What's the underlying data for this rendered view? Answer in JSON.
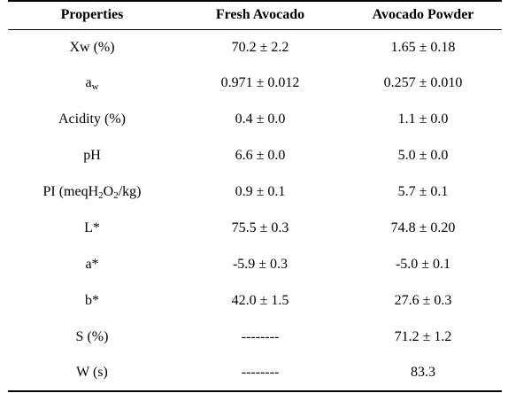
{
  "table": {
    "headers": [
      "Properties",
      "Fresh Avocado",
      "Avocado Powder"
    ],
    "rows": [
      {
        "property": "Xw (%)",
        "fresh": "70.2 ± 2.2",
        "powder": "1.65 ± 0.18"
      },
      {
        "property_base": "a",
        "property_sub": "w",
        "fresh": "0.971 ± 0.012",
        "powder": "0.257 ± 0.010"
      },
      {
        "property": "Acidity (%)",
        "fresh": "0.4 ± 0.0",
        "powder": "1.1 ± 0.0"
      },
      {
        "property": "pH",
        "fresh": "6.6 ± 0.0",
        "powder": "5.0 ± 0.0"
      },
      {
        "property_pre": "PI (meqH",
        "property_sub1": "2",
        "property_mid": "O",
        "property_sub2": "2",
        "property_post": "/kg)",
        "fresh": "0.9 ± 0.1",
        "powder": "5.7 ± 0.1"
      },
      {
        "property": "L*",
        "fresh": "75.5 ± 0.3",
        "powder": "74.8 ± 0.20"
      },
      {
        "property": "a*",
        "fresh": "-5.9 ± 0.3",
        "powder": "-5.0 ± 0.1"
      },
      {
        "property": "b*",
        "fresh": "42.0 ± 1.5",
        "powder": "27.6 ± 0.3"
      },
      {
        "property": "S (%)",
        "fresh": "--------",
        "powder": "71.2 ± 1.2"
      },
      {
        "property": "W (s)",
        "fresh": "--------",
        "powder": "83.3"
      }
    ]
  }
}
